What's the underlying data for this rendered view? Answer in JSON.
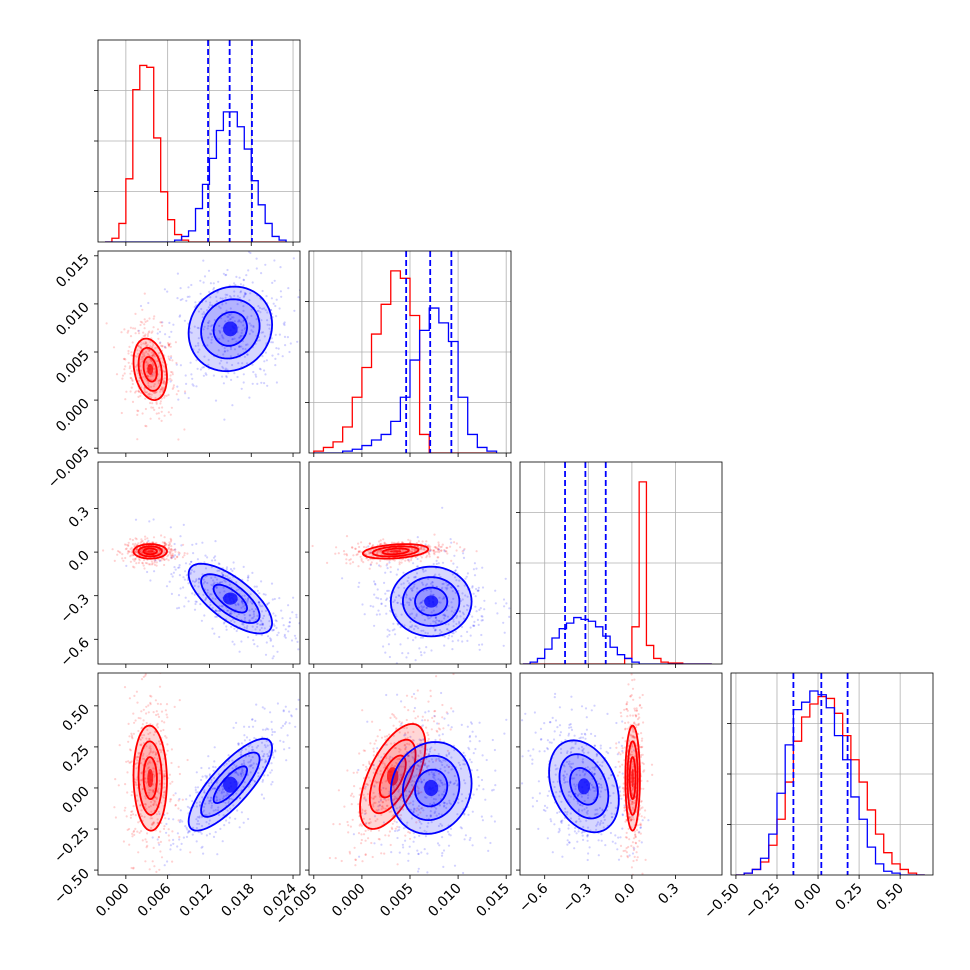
{
  "chart_data": {
    "type": "corner",
    "series": [
      {
        "name": "",
        "color": "#0000ff",
        "quantile_lines": true
      },
      {
        "name": "",
        "color": "#ff0000",
        "quantile_lines": false
      }
    ],
    "parameters": [
      {
        "range": [
          -0.004,
          0.025
        ],
        "ticks": [
          "0.000",
          "0.006",
          "0.012",
          "0.018",
          "0.024"
        ],
        "tick_values": [
          0.0,
          0.006,
          0.012,
          0.018,
          0.024
        ]
      },
      {
        "range": [
          -0.0055,
          0.0155
        ],
        "ticks": [
          "-0.005",
          "0.000",
          "0.005",
          "0.010",
          "0.015"
        ],
        "tick_values": [
          -0.005,
          0.0,
          0.005,
          0.01,
          0.015
        ]
      },
      {
        "range": [
          -0.77,
          0.62
        ],
        "ticks": [
          "-0.6",
          "-0.3",
          "0.0",
          "0.3"
        ],
        "tick_values": [
          -0.6,
          -0.3,
          0.0,
          0.3
        ]
      },
      {
        "range": [
          -0.53,
          0.7
        ],
        "ticks": [
          "-0.50",
          "-0.25",
          "0.00",
          "0.25",
          "0.50"
        ],
        "tick_values": [
          -0.5,
          -0.25,
          0.0,
          0.25,
          0.5
        ]
      }
    ],
    "marginals": [
      {
        "bins": [
          -0.003,
          -0.002,
          -0.001,
          0.0,
          0.001,
          0.002,
          0.003,
          0.004,
          0.005,
          0.006,
          0.007,
          0.008,
          0.009,
          0.01,
          0.011,
          0.012,
          0.013,
          0.014,
          0.015,
          0.016,
          0.017,
          0.018,
          0.019,
          0.02,
          0.021,
          0.022,
          0.023
        ],
        "blue": [
          0,
          0,
          0,
          0,
          0,
          0,
          0,
          0,
          0,
          0,
          0.01,
          0.03,
          0.06,
          0.18,
          0.31,
          0.45,
          0.6,
          0.7,
          0.7,
          0.62,
          0.5,
          0.33,
          0.2,
          0.1,
          0.03,
          0.01
        ],
        "red": [
          0,
          0.02,
          0.1,
          0.34,
          0.82,
          0.95,
          0.94,
          0.56,
          0.27,
          0.12,
          0.04,
          0.01,
          0,
          0,
          0,
          0,
          0,
          0,
          0,
          0,
          0,
          0,
          0,
          0,
          0,
          0
        ],
        "quantiles": [
          0.0118,
          0.0149,
          0.0181
        ]
      },
      {
        "bins": [
          -0.005,
          -0.004,
          -0.003,
          -0.002,
          -0.001,
          0.0,
          0.001,
          0.002,
          0.003,
          0.004,
          0.005,
          0.006,
          0.007,
          0.008,
          0.009,
          0.01,
          0.011,
          0.012,
          0.013,
          0.014
        ],
        "blue": [
          0,
          0,
          0,
          0.01,
          0.02,
          0.04,
          0.07,
          0.1,
          0.17,
          0.3,
          0.5,
          0.66,
          0.78,
          0.7,
          0.6,
          0.3,
          0.1,
          0.03,
          0.01
        ],
        "red": [
          0.01,
          0.03,
          0.06,
          0.14,
          0.3,
          0.46,
          0.64,
          0.8,
          0.98,
          0.94,
          0.74,
          0.1,
          0,
          0,
          0,
          0,
          0,
          0,
          0
        ],
        "quantiles": [
          0.0046,
          0.0071,
          0.0093
        ]
      },
      {
        "bins": [
          -0.75,
          -0.7,
          -0.65,
          -0.6,
          -0.55,
          -0.5,
          -0.45,
          -0.4,
          -0.35,
          -0.3,
          -0.25,
          -0.2,
          -0.15,
          -0.1,
          -0.05,
          0.0,
          0.05,
          0.1,
          0.15,
          0.2,
          0.25,
          0.3,
          0.35,
          0.4,
          0.45,
          0.5,
          0.55
        ],
        "blue": [
          0,
          0.01,
          0.03,
          0.08,
          0.14,
          0.19,
          0.22,
          0.25,
          0.24,
          0.23,
          0.2,
          0.15,
          0.09,
          0.05,
          0.03,
          0.01,
          0,
          0,
          0,
          0,
          0,
          0,
          0,
          0,
          0,
          0
        ],
        "red": [
          0,
          0,
          0,
          0,
          0,
          0,
          0,
          0,
          0,
          0,
          0,
          0,
          0,
          0,
          0.03,
          0.2,
          0.98,
          0.1,
          0.03,
          0.01,
          0.005,
          0.005,
          0,
          0,
          0,
          0
        ],
        "quantiles": [
          -0.46,
          -0.32,
          -0.18
        ]
      },
      {
        "bins": [
          -0.5,
          -0.45,
          -0.4,
          -0.35,
          -0.3,
          -0.25,
          -0.2,
          -0.15,
          -0.1,
          -0.05,
          0.0,
          0.05,
          0.1,
          0.15,
          0.2,
          0.25,
          0.3,
          0.35,
          0.4,
          0.45,
          0.5,
          0.55,
          0.6,
          0.65
        ],
        "blue": [
          0,
          0.01,
          0.03,
          0.09,
          0.22,
          0.44,
          0.7,
          0.89,
          0.93,
          0.99,
          0.97,
          0.9,
          0.75,
          0.62,
          0.42,
          0.3,
          0.15,
          0.06,
          0.02,
          0.01,
          0,
          0,
          0
        ],
        "red": [
          0,
          0.01,
          0.03,
          0.07,
          0.16,
          0.3,
          0.5,
          0.72,
          0.85,
          0.92,
          0.96,
          0.95,
          0.87,
          0.75,
          0.62,
          0.5,
          0.35,
          0.22,
          0.12,
          0.06,
          0.03,
          0.01,
          0
        ],
        "quantiles": [
          -0.15,
          0.02,
          0.18
        ]
      }
    ],
    "joint": [
      {
        "row": 1,
        "col": 0,
        "blue": {
          "mean": [
            0.015,
            0.0074
          ],
          "sd": [
            0.003,
            0.0022
          ],
          "rho": 0.1
        },
        "red": {
          "mean": [
            0.0035,
            0.0032
          ],
          "sd": [
            0.0012,
            0.0016
          ],
          "rho": -0.25
        }
      },
      {
        "row": 2,
        "col": 0,
        "blue": {
          "mean": [
            0.015,
            -0.32
          ],
          "sd": [
            0.003,
            0.12
          ],
          "rho": -0.7
        },
        "red": {
          "mean": [
            0.0035,
            0.005
          ],
          "sd": [
            0.0012,
            0.025
          ],
          "rho": 0.0
        }
      },
      {
        "row": 2,
        "col": 1,
        "blue": {
          "mean": [
            0.0072,
            -0.34
          ],
          "sd": [
            0.0021,
            0.12
          ],
          "rho": 0.0
        },
        "red": {
          "mean": [
            0.0035,
            0.005
          ],
          "sd": [
            0.0017,
            0.025
          ],
          "rho": 0.3
        }
      },
      {
        "row": 3,
        "col": 0,
        "blue": {
          "mean": [
            0.015,
            0.02
          ],
          "sd": [
            0.003,
            0.14
          ],
          "rho": 0.8
        },
        "red": {
          "mean": [
            0.0035,
            0.06
          ],
          "sd": [
            0.0012,
            0.16
          ],
          "rho": -0.05
        }
      },
      {
        "row": 3,
        "col": 1,
        "blue": {
          "mean": [
            0.0072,
            0.0
          ],
          "sd": [
            0.0021,
            0.14
          ],
          "rho": 0.1
        },
        "red": {
          "mean": [
            0.0032,
            0.07
          ],
          "sd": [
            0.0017,
            0.16
          ],
          "rho": 0.6
        }
      },
      {
        "row": 3,
        "col": 2,
        "blue": {
          "mean": [
            -0.33,
            0.01
          ],
          "sd": [
            0.12,
            0.14
          ],
          "rho": -0.3
        },
        "red": {
          "mean": [
            0.005,
            0.06
          ],
          "sd": [
            0.025,
            0.16
          ],
          "rho": 0.0
        }
      }
    ],
    "grid": true,
    "xlabel": "",
    "ylabel": "",
    "title": ""
  }
}
